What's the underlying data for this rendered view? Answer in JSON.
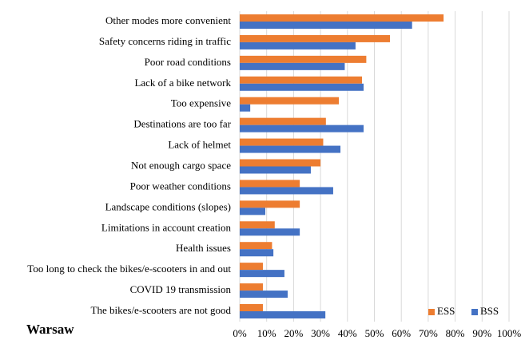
{
  "chart_data": {
    "type": "barh",
    "title": "Warsaw",
    "categories": [
      "Other modes more convenient",
      "Safety concerns riding in traffic",
      "Poor road conditions",
      "Lack of a bike network",
      "Too expensive",
      "Destinations are too far",
      "Lack of helmet",
      "Not enough cargo space",
      "Poor weather conditions",
      "Landscape conditions (slopes)",
      "Limitations in account creation",
      "Health issues",
      "Too long to check the bikes/e-scooters in and out",
      "COVID 19 transmission",
      "The bikes/e-scooters are not good"
    ],
    "series": [
      {
        "name": "ESS",
        "color": "#ED7D31",
        "values": [
          75.7,
          55.8,
          47,
          45.4,
          36.8,
          32,
          31,
          30,
          22.3,
          22.3,
          13,
          12,
          8.6,
          8.6,
          8.6
        ]
      },
      {
        "name": "BSS",
        "color": "#4472C4",
        "values": [
          64,
          43,
          39,
          46,
          3.9,
          46,
          37.4,
          26.4,
          34.7,
          9.5,
          22.3,
          12.5,
          16.6,
          17.8,
          31.8
        ]
      }
    ],
    "xlim": [
      0,
      100
    ],
    "xticks": [
      {
        "value": 0,
        "label": "0%"
      },
      {
        "value": 10,
        "label": "10%"
      },
      {
        "value": 20,
        "label": "20%"
      },
      {
        "value": 30,
        "label": "30%"
      },
      {
        "value": 40,
        "label": "40%"
      },
      {
        "value": 50,
        "label": "50%"
      },
      {
        "value": 60,
        "label": "60%"
      },
      {
        "value": 70,
        "label": "70%"
      },
      {
        "value": 80,
        "label": "80%"
      },
      {
        "value": 90,
        "label": "90%"
      },
      {
        "value": 100,
        "label": "100%"
      }
    ],
    "grid": true,
    "legend": "bottom-right"
  }
}
